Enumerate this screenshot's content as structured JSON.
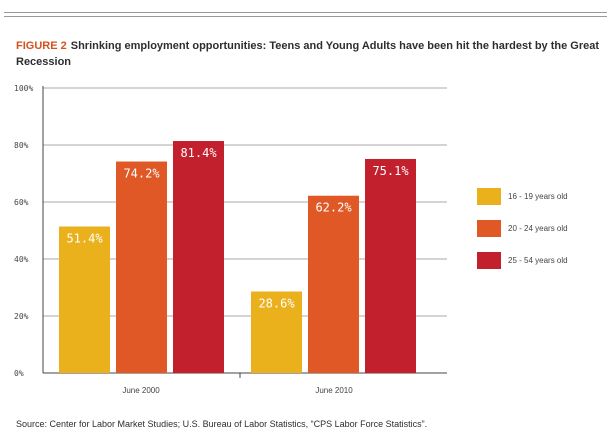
{
  "figure_label": "FIGURE 2",
  "title": "Shrinking employment opportunities: Teens and Young Adults have been hit the hardest by the Great Recession",
  "source": "Source: Center for Labor Market Studies; U.S. Bureau of Labor Statistics, “CPS Labor Force Statistics”.",
  "chart_data": {
    "type": "bar",
    "categories": [
      "June 2000",
      "June 2010"
    ],
    "series": [
      {
        "name": "16 - 19 years old",
        "values": [
          51.4,
          28.6
        ],
        "labels": [
          "51.4%",
          "28.6%"
        ],
        "color": "#ebb11d"
      },
      {
        "name": "20 - 24 years old",
        "values": [
          74.2,
          62.2
        ],
        "labels": [
          "74.2%",
          "62.2%"
        ],
        "color": "#df5826"
      },
      {
        "name": "25 - 54 years old",
        "values": [
          81.4,
          75.1
        ],
        "labels": [
          "81.4%",
          "75.1%"
        ],
        "color": "#c3202e"
      }
    ],
    "ylim": [
      0,
      100
    ],
    "yticks": [
      0,
      20,
      40,
      60,
      80,
      100
    ],
    "ytick_labels": [
      "0%",
      "20%",
      "40%",
      "60%",
      "80%",
      "100%"
    ],
    "grid": true,
    "legend_position": "right",
    "xlabel": "",
    "ylabel": ""
  }
}
